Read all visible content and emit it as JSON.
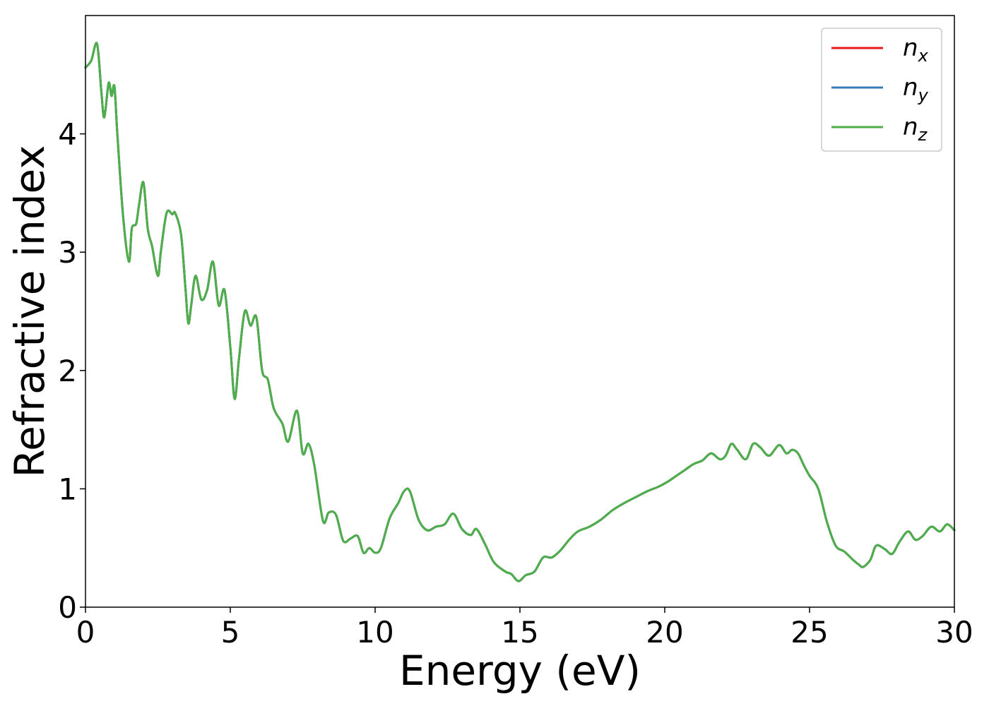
{
  "chart_data": {
    "type": "line",
    "xlabel": "Energy (eV)",
    "ylabel": "Refractive index",
    "xlim": [
      0,
      30
    ],
    "ylim": [
      0,
      5.0
    ],
    "xticks": [
      0,
      5,
      10,
      15,
      20,
      25,
      30
    ],
    "xtick_labels": [
      "0",
      "5",
      "10",
      "15",
      "20",
      "25",
      "30"
    ],
    "yticks": [
      0,
      1,
      2,
      3,
      4
    ],
    "ytick_labels": [
      "0",
      "1",
      "2",
      "3",
      "4"
    ],
    "grid": false,
    "legend_position": "top-right",
    "x": [
      0.0,
      0.2,
      0.4,
      0.55,
      0.65,
      0.8,
      0.9,
      1.0,
      1.1,
      1.3,
      1.5,
      1.6,
      1.75,
      1.85,
      2.0,
      2.15,
      2.3,
      2.5,
      2.6,
      2.8,
      3.0,
      3.1,
      3.3,
      3.45,
      3.55,
      3.65,
      3.8,
      4.0,
      4.2,
      4.4,
      4.6,
      4.8,
      5.0,
      5.15,
      5.3,
      5.5,
      5.7,
      5.9,
      6.1,
      6.3,
      6.5,
      6.8,
      7.0,
      7.3,
      7.5,
      7.7,
      7.9,
      8.2,
      8.4,
      8.65,
      8.9,
      9.15,
      9.4,
      9.6,
      9.8,
      10.0,
      10.2,
      10.5,
      10.8,
      11.0,
      11.2,
      11.5,
      11.8,
      12.1,
      12.4,
      12.7,
      13.0,
      13.3,
      13.5,
      13.8,
      14.1,
      14.5,
      14.7,
      14.95,
      15.2,
      15.5,
      15.8,
      16.1,
      16.4,
      16.7,
      17.0,
      17.4,
      17.8,
      18.2,
      18.6,
      19.0,
      19.4,
      19.8,
      20.1,
      20.4,
      20.7,
      21.0,
      21.3,
      21.6,
      21.9,
      22.1,
      22.3,
      22.5,
      22.8,
      23.05,
      23.3,
      23.6,
      23.95,
      24.2,
      24.4,
      24.6,
      24.8,
      25.0,
      25.3,
      25.6,
      25.9,
      26.2,
      26.5,
      26.7,
      26.85,
      27.1,
      27.3,
      27.6,
      27.85,
      28.1,
      28.4,
      28.65,
      28.9,
      29.2,
      29.5,
      29.75,
      30.0
    ],
    "series": [
      {
        "name": "n_x",
        "label_main": "n",
        "label_sub": "x",
        "color": "#e41a1c",
        "y": [
          4.56,
          4.62,
          4.76,
          4.35,
          4.14,
          4.43,
          4.32,
          4.4,
          4.0,
          3.3,
          2.92,
          3.2,
          3.24,
          3.4,
          3.59,
          3.2,
          3.05,
          2.8,
          3.0,
          3.33,
          3.32,
          3.33,
          3.15,
          2.7,
          2.4,
          2.55,
          2.8,
          2.6,
          2.68,
          2.92,
          2.55,
          2.68,
          2.2,
          1.76,
          2.1,
          2.5,
          2.38,
          2.45,
          2.0,
          1.92,
          1.68,
          1.55,
          1.4,
          1.66,
          1.3,
          1.38,
          1.2,
          0.73,
          0.8,
          0.78,
          0.56,
          0.58,
          0.6,
          0.46,
          0.5,
          0.46,
          0.5,
          0.75,
          0.88,
          0.98,
          0.98,
          0.74,
          0.65,
          0.68,
          0.7,
          0.79,
          0.66,
          0.61,
          0.66,
          0.53,
          0.38,
          0.3,
          0.28,
          0.22,
          0.27,
          0.3,
          0.42,
          0.42,
          0.48,
          0.57,
          0.64,
          0.68,
          0.74,
          0.82,
          0.88,
          0.93,
          0.98,
          1.02,
          1.06,
          1.11,
          1.16,
          1.21,
          1.24,
          1.3,
          1.25,
          1.28,
          1.38,
          1.33,
          1.25,
          1.38,
          1.35,
          1.28,
          1.37,
          1.3,
          1.33,
          1.3,
          1.2,
          1.11,
          1.0,
          0.72,
          0.52,
          0.47,
          0.4,
          0.36,
          0.34,
          0.4,
          0.52,
          0.49,
          0.45,
          0.55,
          0.64,
          0.57,
          0.6,
          0.68,
          0.64,
          0.7,
          0.65
        ]
      },
      {
        "name": "n_y",
        "label_main": "n",
        "label_sub": "y",
        "color": "#377eb8",
        "y": [
          4.56,
          4.62,
          4.76,
          4.35,
          4.14,
          4.43,
          4.32,
          4.4,
          4.0,
          3.3,
          2.92,
          3.2,
          3.24,
          3.4,
          3.59,
          3.2,
          3.05,
          2.8,
          3.0,
          3.33,
          3.32,
          3.33,
          3.15,
          2.7,
          2.4,
          2.55,
          2.8,
          2.6,
          2.68,
          2.92,
          2.55,
          2.68,
          2.2,
          1.76,
          2.1,
          2.5,
          2.38,
          2.45,
          2.0,
          1.92,
          1.68,
          1.55,
          1.4,
          1.66,
          1.3,
          1.38,
          1.2,
          0.73,
          0.8,
          0.78,
          0.56,
          0.58,
          0.6,
          0.46,
          0.5,
          0.46,
          0.5,
          0.75,
          0.88,
          0.98,
          0.98,
          0.74,
          0.65,
          0.68,
          0.7,
          0.79,
          0.66,
          0.61,
          0.66,
          0.53,
          0.38,
          0.3,
          0.28,
          0.22,
          0.27,
          0.3,
          0.42,
          0.42,
          0.48,
          0.57,
          0.64,
          0.68,
          0.74,
          0.82,
          0.88,
          0.93,
          0.98,
          1.02,
          1.06,
          1.11,
          1.16,
          1.21,
          1.24,
          1.3,
          1.25,
          1.28,
          1.38,
          1.33,
          1.25,
          1.38,
          1.35,
          1.28,
          1.37,
          1.3,
          1.33,
          1.3,
          1.2,
          1.11,
          1.0,
          0.72,
          0.52,
          0.47,
          0.4,
          0.36,
          0.34,
          0.4,
          0.52,
          0.49,
          0.45,
          0.55,
          0.64,
          0.57,
          0.6,
          0.68,
          0.64,
          0.7,
          0.65
        ]
      },
      {
        "name": "n_z",
        "label_main": "n",
        "label_sub": "z",
        "color": "#4daf4a",
        "y": [
          4.56,
          4.62,
          4.76,
          4.35,
          4.14,
          4.43,
          4.32,
          4.4,
          4.0,
          3.3,
          2.92,
          3.2,
          3.24,
          3.4,
          3.59,
          3.2,
          3.05,
          2.8,
          3.0,
          3.33,
          3.32,
          3.33,
          3.15,
          2.7,
          2.4,
          2.55,
          2.8,
          2.6,
          2.68,
          2.92,
          2.55,
          2.68,
          2.2,
          1.76,
          2.1,
          2.5,
          2.38,
          2.45,
          2.0,
          1.92,
          1.68,
          1.55,
          1.4,
          1.66,
          1.3,
          1.38,
          1.2,
          0.73,
          0.8,
          0.78,
          0.56,
          0.58,
          0.6,
          0.46,
          0.5,
          0.46,
          0.5,
          0.75,
          0.88,
          0.98,
          0.98,
          0.74,
          0.65,
          0.68,
          0.7,
          0.79,
          0.66,
          0.61,
          0.66,
          0.53,
          0.38,
          0.3,
          0.28,
          0.22,
          0.27,
          0.3,
          0.42,
          0.42,
          0.48,
          0.57,
          0.64,
          0.68,
          0.74,
          0.82,
          0.88,
          0.93,
          0.98,
          1.02,
          1.06,
          1.11,
          1.16,
          1.21,
          1.24,
          1.3,
          1.25,
          1.28,
          1.38,
          1.33,
          1.25,
          1.38,
          1.35,
          1.28,
          1.37,
          1.3,
          1.33,
          1.3,
          1.2,
          1.11,
          1.0,
          0.72,
          0.52,
          0.47,
          0.4,
          0.36,
          0.34,
          0.4,
          0.52,
          0.49,
          0.45,
          0.55,
          0.64,
          0.57,
          0.6,
          0.68,
          0.64,
          0.7,
          0.65
        ]
      }
    ]
  }
}
